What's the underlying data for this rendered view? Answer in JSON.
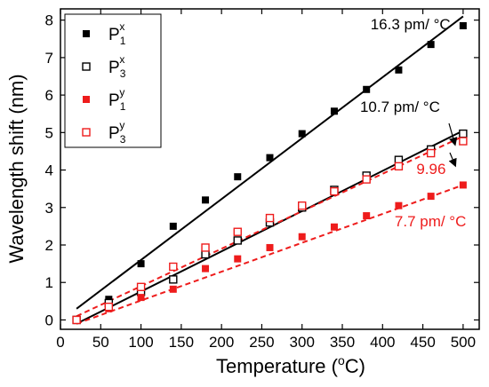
{
  "chart_data": {
    "type": "scatter",
    "xlabel_main": "Temperature (",
    "xlabel_sup": "o",
    "xlabel_end": "C)",
    "ylabel": "Wavelength shift (nm)",
    "xlim": [
      0,
      520
    ],
    "ylim": [
      -0.25,
      8.3
    ],
    "x_ticks": [
      0,
      50,
      100,
      150,
      200,
      250,
      300,
      350,
      400,
      450,
      500
    ],
    "y_ticks": [
      0,
      1,
      2,
      3,
      4,
      5,
      6,
      7,
      8
    ],
    "grid": false,
    "legend_position": "top-left",
    "series": [
      {
        "name": "P",
        "sub": "1",
        "sup": "x",
        "color": "#000000",
        "marker": "filled-square",
        "x": [
          20,
          60,
          100,
          140,
          180,
          220,
          260,
          300,
          340,
          380,
          420,
          460,
          500
        ],
        "y": [
          0.0,
          0.55,
          1.5,
          2.5,
          3.2,
          3.82,
          4.33,
          4.97,
          5.57,
          6.15,
          6.67,
          7.35,
          7.85
        ],
        "fit": {
          "x": [
            20,
            500
          ],
          "y": [
            0.3,
            8.1
          ],
          "style": "solid"
        }
      },
      {
        "name": "P",
        "sub": "3",
        "sup": "x",
        "color": "#000000",
        "marker": "open-square",
        "x": [
          20,
          60,
          100,
          140,
          180,
          220,
          260,
          300,
          340,
          380,
          420,
          460,
          500
        ],
        "y": [
          0.0,
          0.45,
          0.75,
          1.08,
          1.75,
          2.12,
          2.6,
          3.0,
          3.47,
          3.85,
          4.27,
          4.55,
          4.97
        ],
        "fit": {
          "x": [
            20,
            500
          ],
          "y": [
            -0.1,
            5.05
          ],
          "style": "solid"
        }
      },
      {
        "name": "P",
        "sub": "1",
        "sup": "y",
        "color": "#ee1c1c",
        "marker": "filled-square",
        "x": [
          20,
          60,
          100,
          140,
          180,
          220,
          260,
          300,
          340,
          380,
          420,
          460,
          500
        ],
        "y": [
          0.0,
          0.3,
          0.6,
          0.82,
          1.37,
          1.63,
          1.93,
          2.22,
          2.48,
          2.78,
          3.05,
          3.3,
          3.6
        ],
        "fit": {
          "x": [
            20,
            500
          ],
          "y": [
            -0.1,
            3.6
          ],
          "style": "dashed"
        }
      },
      {
        "name": "P",
        "sub": "3",
        "sup": "y",
        "color": "#ee1c1c",
        "marker": "open-square",
        "x": [
          20,
          60,
          100,
          140,
          180,
          220,
          260,
          300,
          340,
          380,
          420,
          460,
          500
        ],
        "y": [
          0.0,
          0.35,
          0.88,
          1.42,
          1.93,
          2.35,
          2.72,
          3.05,
          3.43,
          3.75,
          4.1,
          4.45,
          4.77
        ],
        "fit": {
          "x": [
            20,
            500
          ],
          "y": [
            0.1,
            4.9
          ],
          "style": "dashed"
        }
      }
    ],
    "annotations": [
      {
        "text": "16.3 pm/ °C",
        "color": "#000000",
        "x": 385,
        "y": 7.75
      },
      {
        "text": "10.7 pm/ °C",
        "color": "#000000",
        "x": 372,
        "y": 5.55
      },
      {
        "text": "9.96",
        "color": "#ee1c1c",
        "x": 442,
        "y": 3.9
      },
      {
        "text": "7.7 pm/ °C",
        "color": "#ee1c1c",
        "x": 415,
        "y": 2.5
      }
    ]
  }
}
